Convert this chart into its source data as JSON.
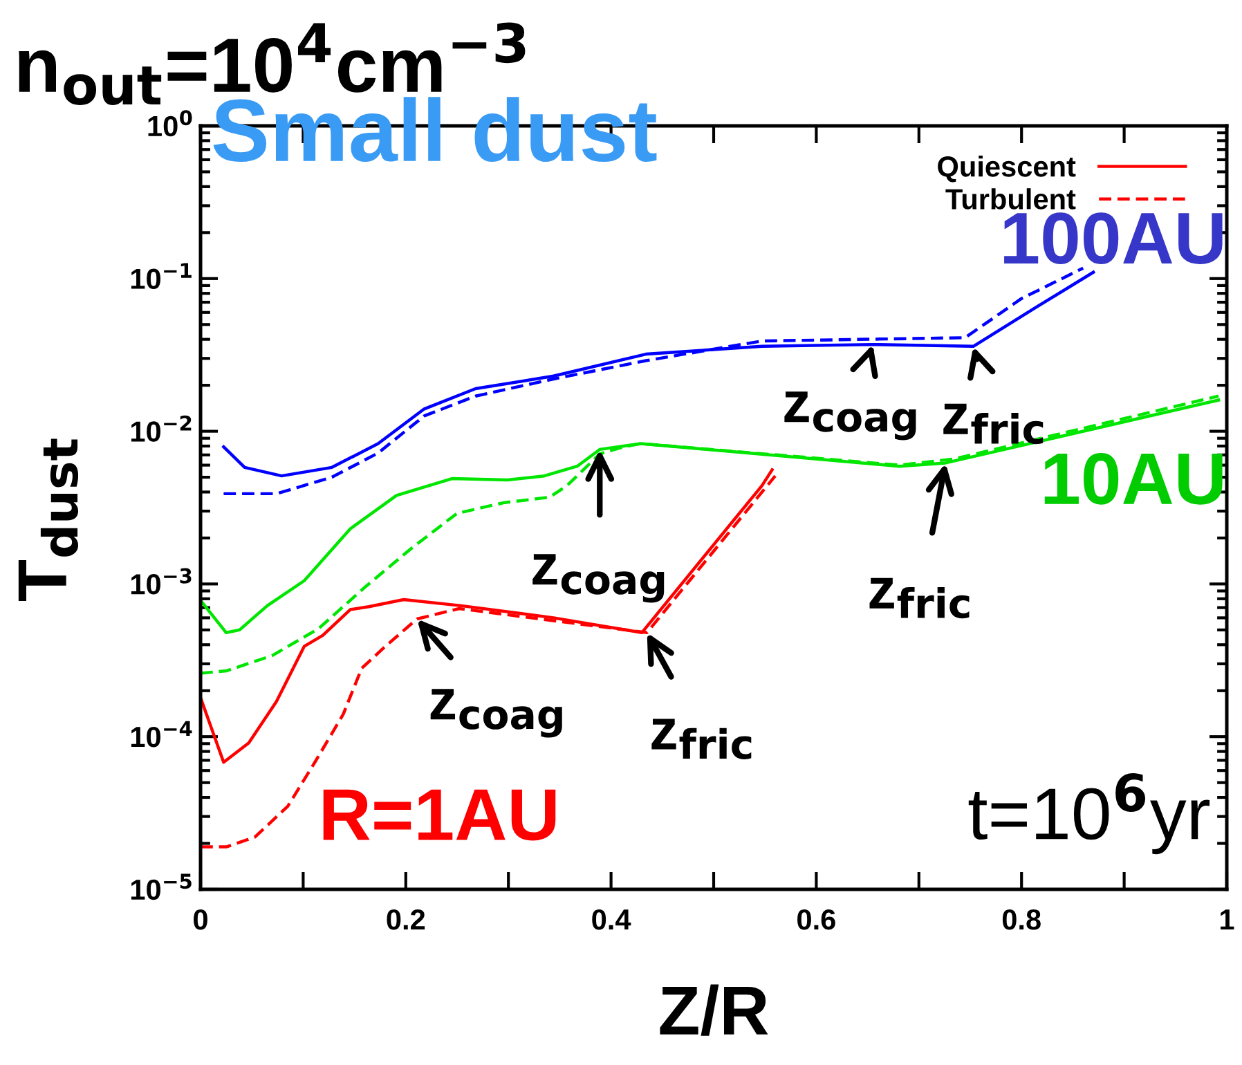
{
  "chart_data": {
    "type": "line",
    "title": "n$_{out}$=10$^{4}$cm$^{−3}$",
    "xlabel": "Z/R",
    "ylabel": "T$_{dust}$",
    "log": "y",
    "xlim": [
      0,
      1
    ],
    "ylim": [
      1e-05,
      1
    ],
    "xticks": [
      0,
      {
        "value": 0.1,
        "label": null
      },
      0.2,
      {
        "value": 0.3,
        "label": null
      },
      0.4,
      {
        "value": 0.5,
        "label": null
      },
      0.6,
      {
        "value": 0.7,
        "label": null
      },
      0.8,
      {
        "value": 0.9,
        "label": null
      },
      1
    ],
    "yticks": [
      {
        "value": 1e-05,
        "label": "10$^{−5}$"
      },
      {
        "value": 0.0001,
        "label": "10$^{−4}$"
      },
      {
        "value": 0.001,
        "label": "10$^{−3}$"
      },
      {
        "value": 0.01,
        "label": "10$^{−2}$"
      },
      {
        "value": 0.1,
        "label": "10$^{−1}$"
      },
      {
        "value": 1,
        "label": "10$^{0}$"
      }
    ],
    "grid": false,
    "legend": "top right",
    "marker": "none",
    "series": [
      {
        "name": "Quiescent",
        "color": "#ff0000",
        "line_style": "solid",
        "x": [
          0,
          0.0225,
          0.047,
          0.074,
          0.101,
          0.119,
          0.146,
          0.164,
          0.198,
          0.254,
          0.344,
          0.43,
          0.547,
          0.557
        ],
        "values": [
          0.00018,
          6.8e-05,
          9.1e-05,
          0.00017,
          0.00039,
          0.00046,
          0.00068,
          0.00071,
          0.00079,
          0.00072,
          0.0006,
          0.00048,
          0.0044,
          0.0056
        ]
      },
      {
        "name": "Turbulent",
        "color": "#ff0000",
        "line_style": "dashed",
        "x": [
          0,
          0.0256,
          0.053,
          0.085,
          0.112,
          0.139,
          0.157,
          0.18,
          0.211,
          0.252,
          0.435,
          0.56
        ],
        "values": [
          1.9e-05,
          1.9e-05,
          2.2e-05,
          3.5e-05,
          6.9e-05,
          0.00014,
          0.00028,
          0.00039,
          0.00059,
          0.00069,
          0.00048,
          0.0051
        ]
      },
      {
        "color": "#00e600",
        "line_style": "solid",
        "x": [
          0,
          0.025,
          0.038,
          0.065,
          0.101,
          0.146,
          0.191,
          0.245,
          0.299,
          0.335,
          0.367,
          0.389,
          0.429,
          0.681,
          0.726,
          0.992
        ],
        "values": [
          0.00078,
          0.00048,
          0.0005,
          0.00072,
          0.00105,
          0.0023,
          0.0038,
          0.0049,
          0.0048,
          0.0051,
          0.0059,
          0.0076,
          0.0083,
          0.0059,
          0.0062,
          0.016
        ]
      },
      {
        "color": "#00e600",
        "line_style": "dashed",
        "x": [
          0,
          0.0256,
          0.07,
          0.115,
          0.16,
          0.205,
          0.25,
          0.295,
          0.34,
          0.357,
          0.389,
          0.412,
          0.429,
          0.681,
          0.735,
          0.992
        ],
        "values": [
          0.00026,
          0.00027,
          0.00034,
          0.00051,
          0.00095,
          0.0017,
          0.0029,
          0.0034,
          0.0037,
          0.0044,
          0.0071,
          0.0079,
          0.0083,
          0.006,
          0.0066,
          0.017
        ]
      },
      {
        "color": "#0000ff",
        "line_style": "solid",
        "x": [
          0.0225,
          0.043,
          0.079,
          0.128,
          0.173,
          0.218,
          0.268,
          0.344,
          0.434,
          0.547,
          0.655,
          0.753,
          0.816,
          0.87
        ],
        "values": [
          0.0079,
          0.0058,
          0.0051,
          0.0058,
          0.0083,
          0.014,
          0.019,
          0.023,
          0.032,
          0.036,
          0.037,
          0.036,
          0.066,
          0.11
        ]
      },
      {
        "color": "#0000ff",
        "line_style": "dashed",
        "x": [
          0.0225,
          0.074,
          0.128,
          0.173,
          0.218,
          0.268,
          0.344,
          0.434,
          0.547,
          0.745,
          0.8,
          0.86
        ],
        "values": [
          0.0039,
          0.0039,
          0.005,
          0.0072,
          0.0126,
          0.017,
          0.022,
          0.029,
          0.039,
          0.041,
          0.074,
          0.117
        ]
      }
    ],
    "annotations": [
      "Small dust",
      "100AU",
      "10AU",
      "R=1AU",
      "t=10$^{6}$yr",
      {
        "text": "z$_{coag}$",
        "x": 0.211,
        "y": 0.00059
      },
      {
        "text": "z$_{fric}$",
        "x": 0.435,
        "y": 0.00048
      },
      {
        "text": "z$_{coag}$",
        "x": 0.389,
        "y": 0.0076
      },
      {
        "text": "z$_{fric}$",
        "x": 0.726,
        "y": 0.0062
      },
      {
        "text": "z$_{coag}$",
        "x": 0.655,
        "y": 0.037
      },
      {
        "text": "z$_{fric}$",
        "x": 0.753,
        "y": 0.036
      }
    ]
  }
}
